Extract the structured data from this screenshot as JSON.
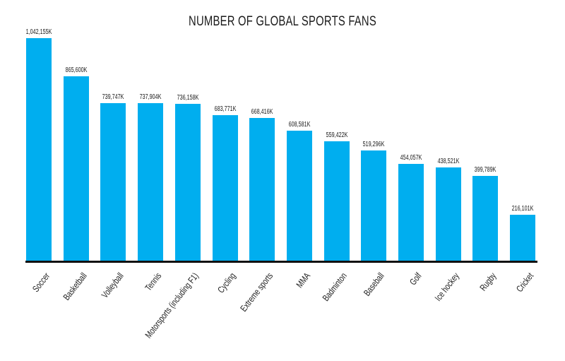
{
  "chart_data": {
    "type": "bar",
    "title": "NUMBER OF GLOBAL SPORTS FANS",
    "xlabel": "",
    "ylabel": "",
    "categories": [
      "Soccer",
      "Basketball",
      "Volleyball",
      "Tennis",
      "Motorsports (including F1)",
      "Cycling",
      "Extreme sports",
      "MMA",
      "Badminton",
      "Baseball",
      "Golf",
      "Ice hockey",
      "Rugby",
      "Cricket"
    ],
    "values": [
      1042155,
      865600,
      739747,
      737904,
      736158,
      683771,
      668416,
      608581,
      559422,
      519296,
      454057,
      438521,
      399789,
      216101
    ],
    "value_labels": [
      "1,042,155K",
      "865,600K",
      "739,747K",
      "737,904K",
      "736,158K",
      "683,771K",
      "668,416K",
      "608,581K",
      "559,422K",
      "519,296K",
      "454,057K",
      "438,521K",
      "399,789K",
      "216,101K"
    ],
    "units": "thousands",
    "ylim": [
      0,
      1042155
    ],
    "grid": false,
    "legend": null,
    "bar_color": "#00AEEF"
  }
}
